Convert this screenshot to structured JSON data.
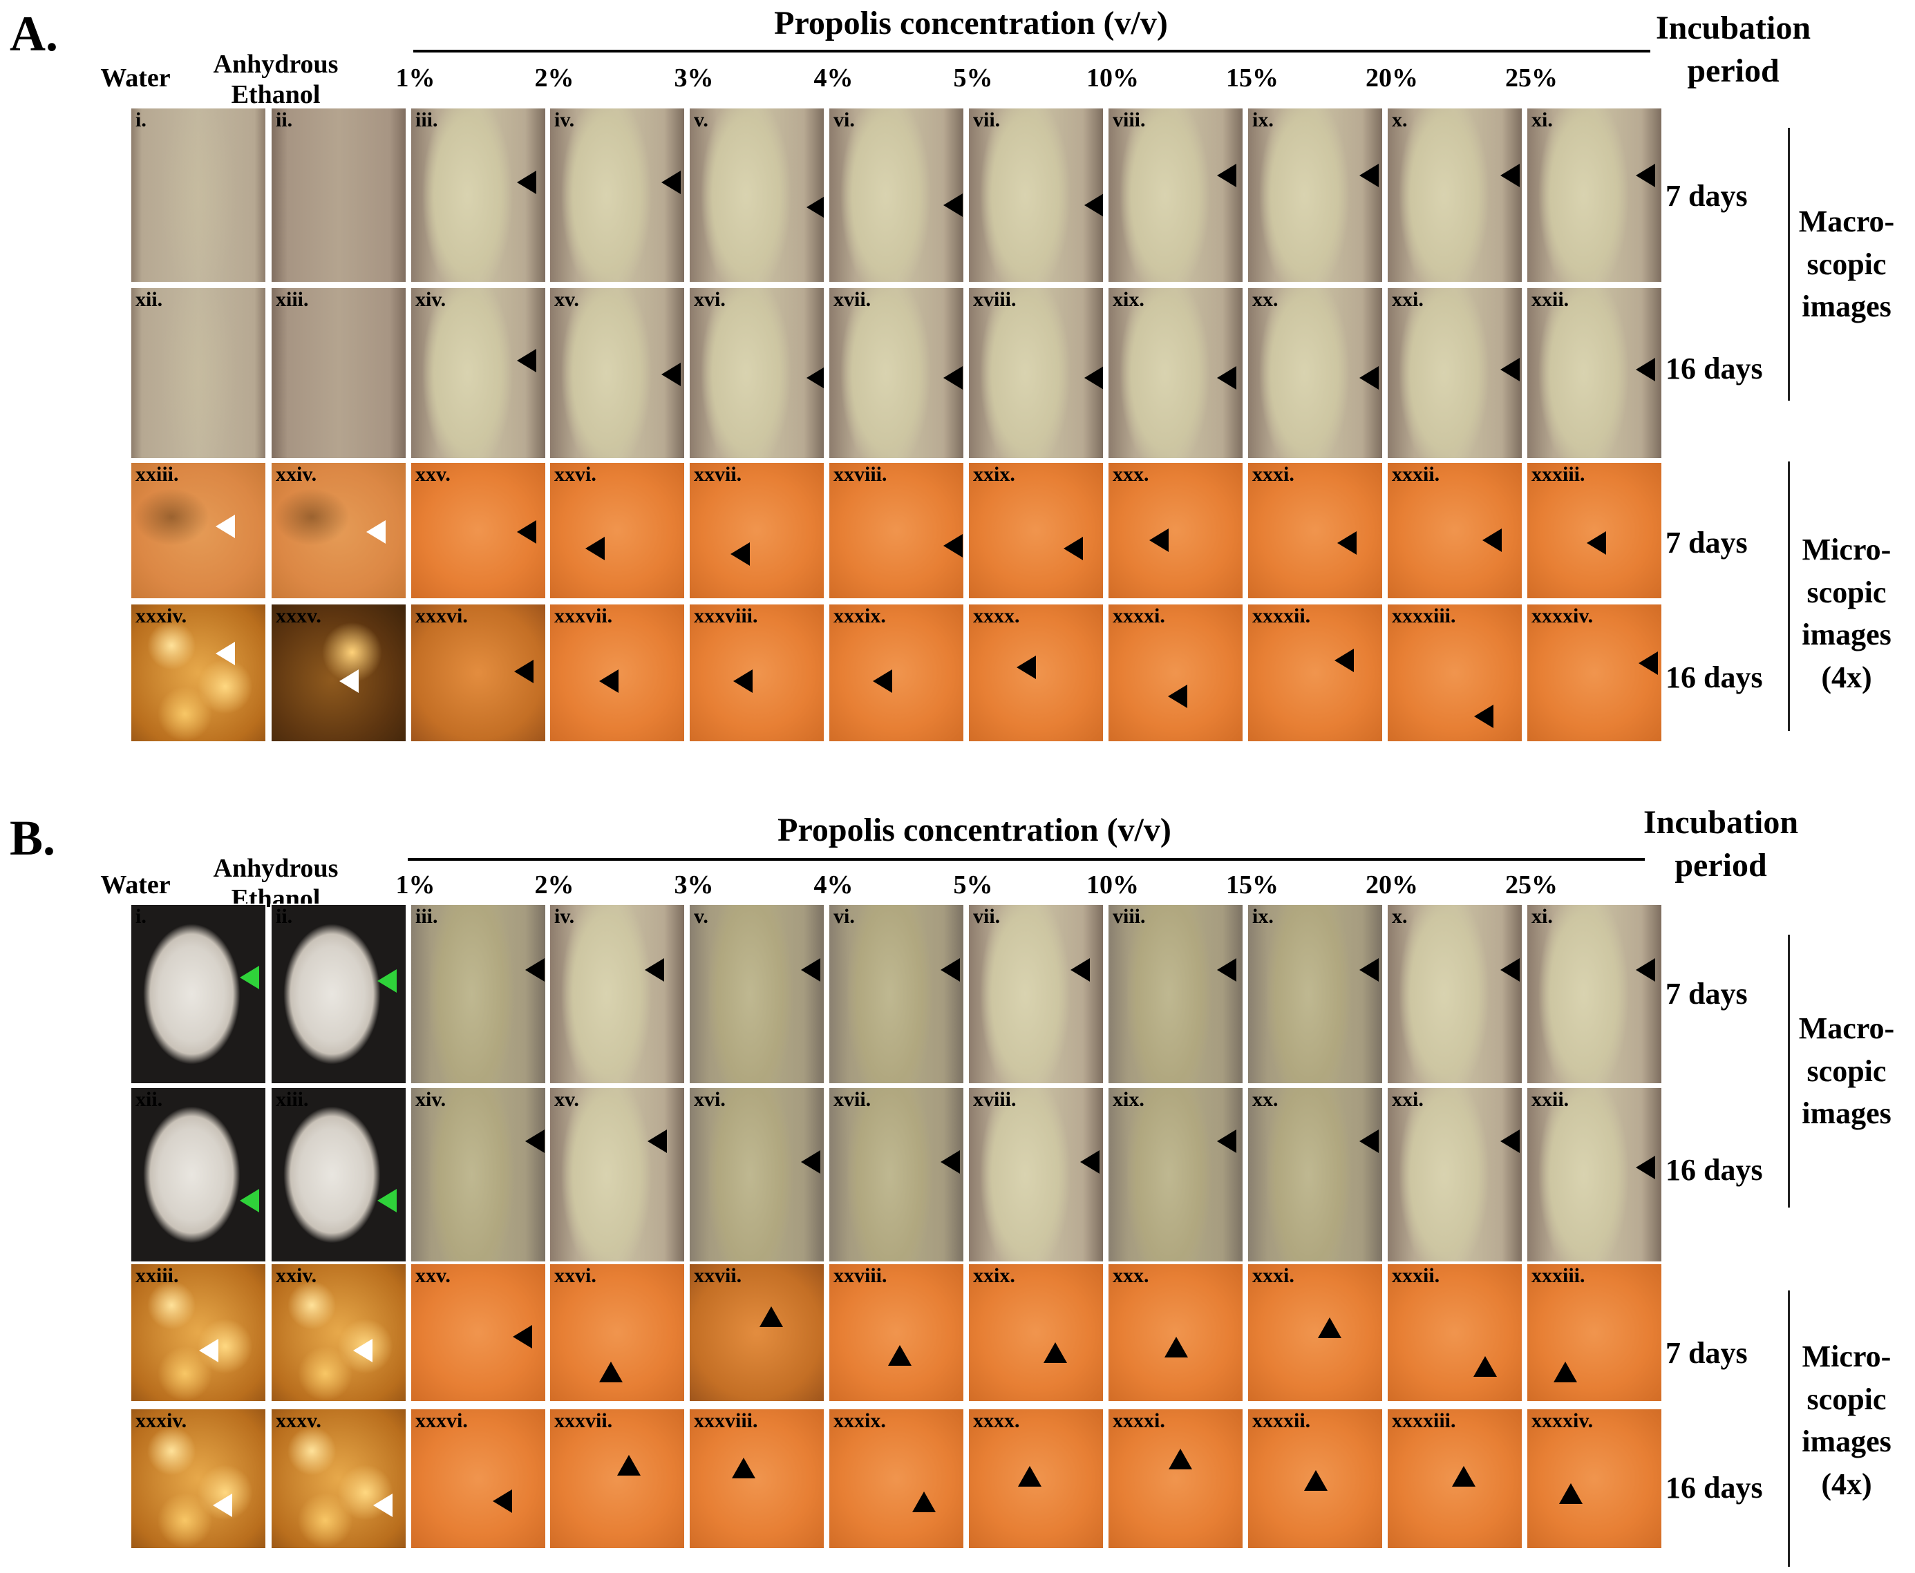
{
  "panels": [
    {
      "label": "A.",
      "concentration_header": "Propolis concentration (v/v)",
      "period_header": "Incubation period",
      "columns": [
        "Water",
        "Anhydrous Ethanol",
        "1%",
        "2%",
        "3%",
        "4%",
        "5%",
        "10%",
        "15%",
        "20%",
        "25%"
      ],
      "rows": [
        {
          "period": "7 days",
          "type": "macro",
          "cells": [
            "i.",
            "ii.",
            "iii.",
            "iv.",
            "v.",
            "vi.",
            "vii.",
            "viii.",
            "ix.",
            "x.",
            "xi."
          ]
        },
        {
          "period": "16 days",
          "type": "macro",
          "cells": [
            "xii.",
            "xiii.",
            "xiv.",
            "xv.",
            "xvi.",
            "xvii.",
            "xviii.",
            "xix.",
            "xx.",
            "xxi.",
            "xxii."
          ]
        },
        {
          "period": "7 days",
          "type": "micro",
          "cells": [
            "xxiii.",
            "xxiv.",
            "xxv.",
            "xxvi.",
            "xxvii.",
            "xxviii.",
            "xxix.",
            "xxx.",
            "xxxi.",
            "xxxii.",
            "xxxiii."
          ]
        },
        {
          "period": "16 days",
          "type": "micro",
          "cells": [
            "xxxiv.",
            "xxxv.",
            "xxxvi.",
            "xxxvii.",
            "xxxviii.",
            "xxxix.",
            "xxxx.",
            "xxxxi.",
            "xxxxii.",
            "xxxxiii.",
            "xxxxiv."
          ]
        }
      ],
      "groups": [
        {
          "label": "Macro-scopic images"
        },
        {
          "label": "Micro-scopic images (4x)"
        }
      ]
    },
    {
      "label": "B.",
      "concentration_header": "Propolis concentration (v/v)",
      "period_header": "Incubation period",
      "columns": [
        "Water",
        "Anhydrous Ethanol",
        "1%",
        "2%",
        "3%",
        "4%",
        "5%",
        "10%",
        "15%",
        "20%",
        "25%"
      ],
      "rows": [
        {
          "period": "7 days",
          "type": "macro",
          "cells": [
            "i.",
            "ii.",
            "iii.",
            "iv.",
            "v.",
            "vi.",
            "vii.",
            "viii.",
            "ix.",
            "x.",
            "xi."
          ]
        },
        {
          "period": "16 days",
          "type": "macro",
          "cells": [
            "xii.",
            "xiii.",
            "xiv.",
            "xv.",
            "xvi.",
            "xvii.",
            "xviii.",
            "xix.",
            "xx.",
            "xxi.",
            "xxii."
          ]
        },
        {
          "period": "7 days",
          "type": "micro",
          "cells": [
            "xxiii.",
            "xxiv.",
            "xxv.",
            "xxvi.",
            "xxvii.",
            "xxviii.",
            "xxix.",
            "xxx.",
            "xxxi.",
            "xxxii.",
            "xxxiii."
          ]
        },
        {
          "period": "16 days",
          "type": "micro",
          "cells": [
            "xxxiv.",
            "xxxv.",
            "xxxvi.",
            "xxxvii.",
            "xxxviii.",
            "xxxix.",
            "xxxx.",
            "xxxxi.",
            "xxxxii.",
            "xxxxiii.",
            "xxxxiv."
          ]
        }
      ],
      "groups": [
        {
          "label": "Macro-scopic images"
        },
        {
          "label": "Micro-scopic images (4x)"
        }
      ]
    }
  ],
  "colors": {
    "arrow_default": "#000000",
    "arrow_control_micro": "#ffffff",
    "arrow_control_macro_b": "#2fd23a"
  }
}
